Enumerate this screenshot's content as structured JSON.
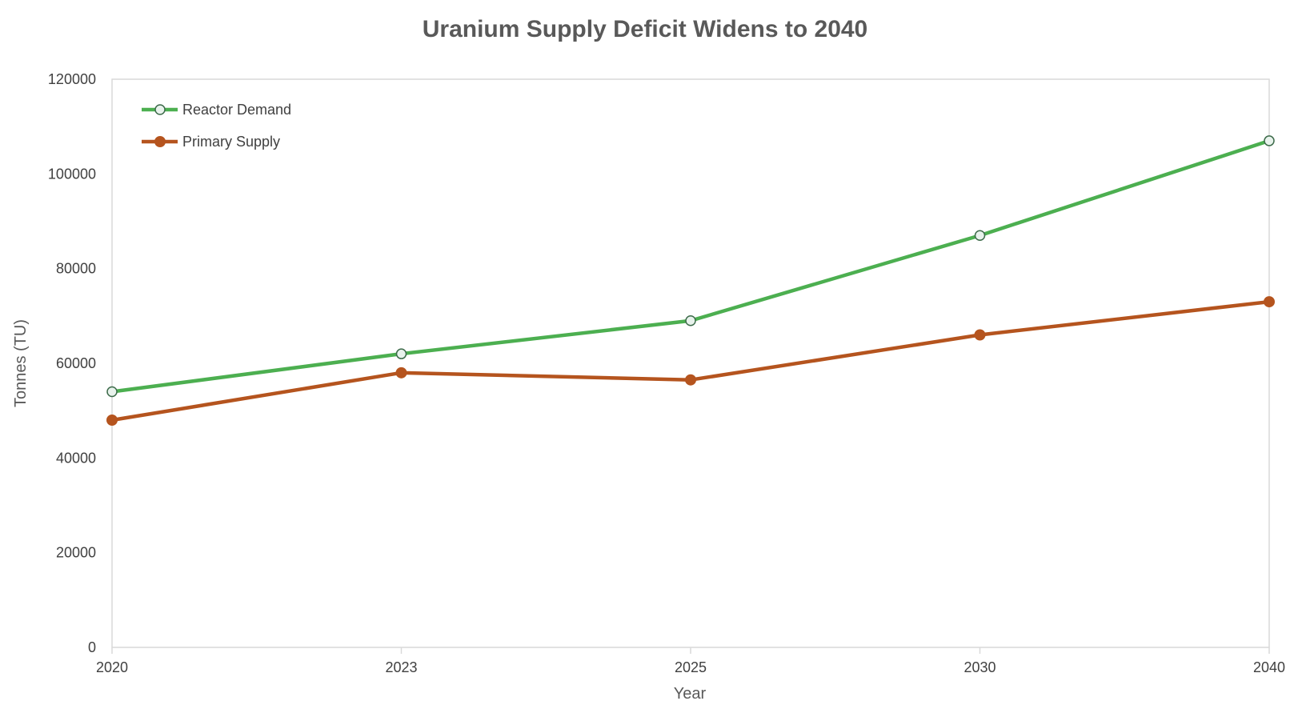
{
  "chart_data": {
    "type": "line",
    "title": "Uranium Supply Deficit Widens to 2040",
    "xlabel": "Year",
    "ylabel": "Tonnes (TU)",
    "categories": [
      "2020",
      "2023",
      "2025",
      "2030",
      "2040"
    ],
    "ylim": [
      0,
      120000
    ],
    "yticks": [
      0,
      20000,
      40000,
      60000,
      80000,
      100000,
      120000
    ],
    "grid": false,
    "legend_position": "top-left",
    "series": [
      {
        "name": "Reactor Demand",
        "values": [
          54000,
          62000,
          69000,
          87000,
          107000
        ],
        "color": "#4CAF50",
        "marker": "hollow-circle"
      },
      {
        "name": "Primary Supply",
        "values": [
          48000,
          58000,
          56500,
          66000,
          73000
        ],
        "color": "#B5541E",
        "marker": "filled-circle"
      }
    ]
  }
}
